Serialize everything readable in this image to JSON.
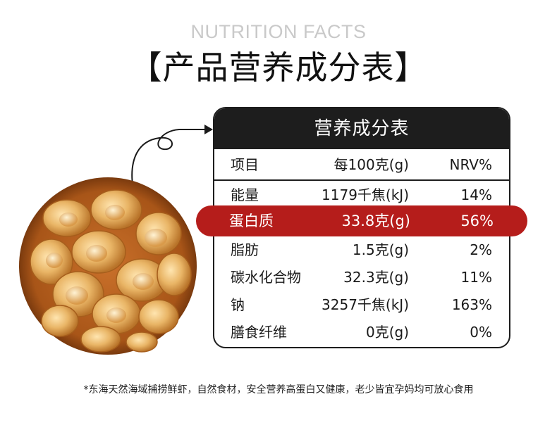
{
  "header": {
    "subtitle": "NUTRITION FACTS",
    "title": "【产品营养成分表】"
  },
  "table": {
    "title": "营养成分表",
    "columns": [
      "项目",
      "每100克(g)",
      "NRV%"
    ],
    "rows": [
      {
        "item": "能量",
        "per100g": "1179千焦(kJ)",
        "nrv": "14%"
      },
      {
        "item": "蛋白质",
        "per100g": "33.8克(g)",
        "nrv": "56%"
      },
      {
        "item": "脂肪",
        "per100g": "1.5克(g)",
        "nrv": "2%"
      },
      {
        "item": "碳水化合物",
        "per100g": "32.3克(g)",
        "nrv": "11%"
      },
      {
        "item": "钠",
        "per100g": "3257千焦(kJ)",
        "nrv": "163%"
      },
      {
        "item": "膳食纤维",
        "per100g": "0克(g)",
        "nrv": "0%"
      }
    ],
    "highlight_color": "#b51d1b",
    "header_color": "#1d1d1d"
  },
  "footnote": "*东海天然海域捕捞鲜虾，自然食材，安全营养高蛋白又健康，老少皆宜孕妈均可放心食用",
  "image": {
    "subject": "bowl-of-dried-shrimp"
  }
}
